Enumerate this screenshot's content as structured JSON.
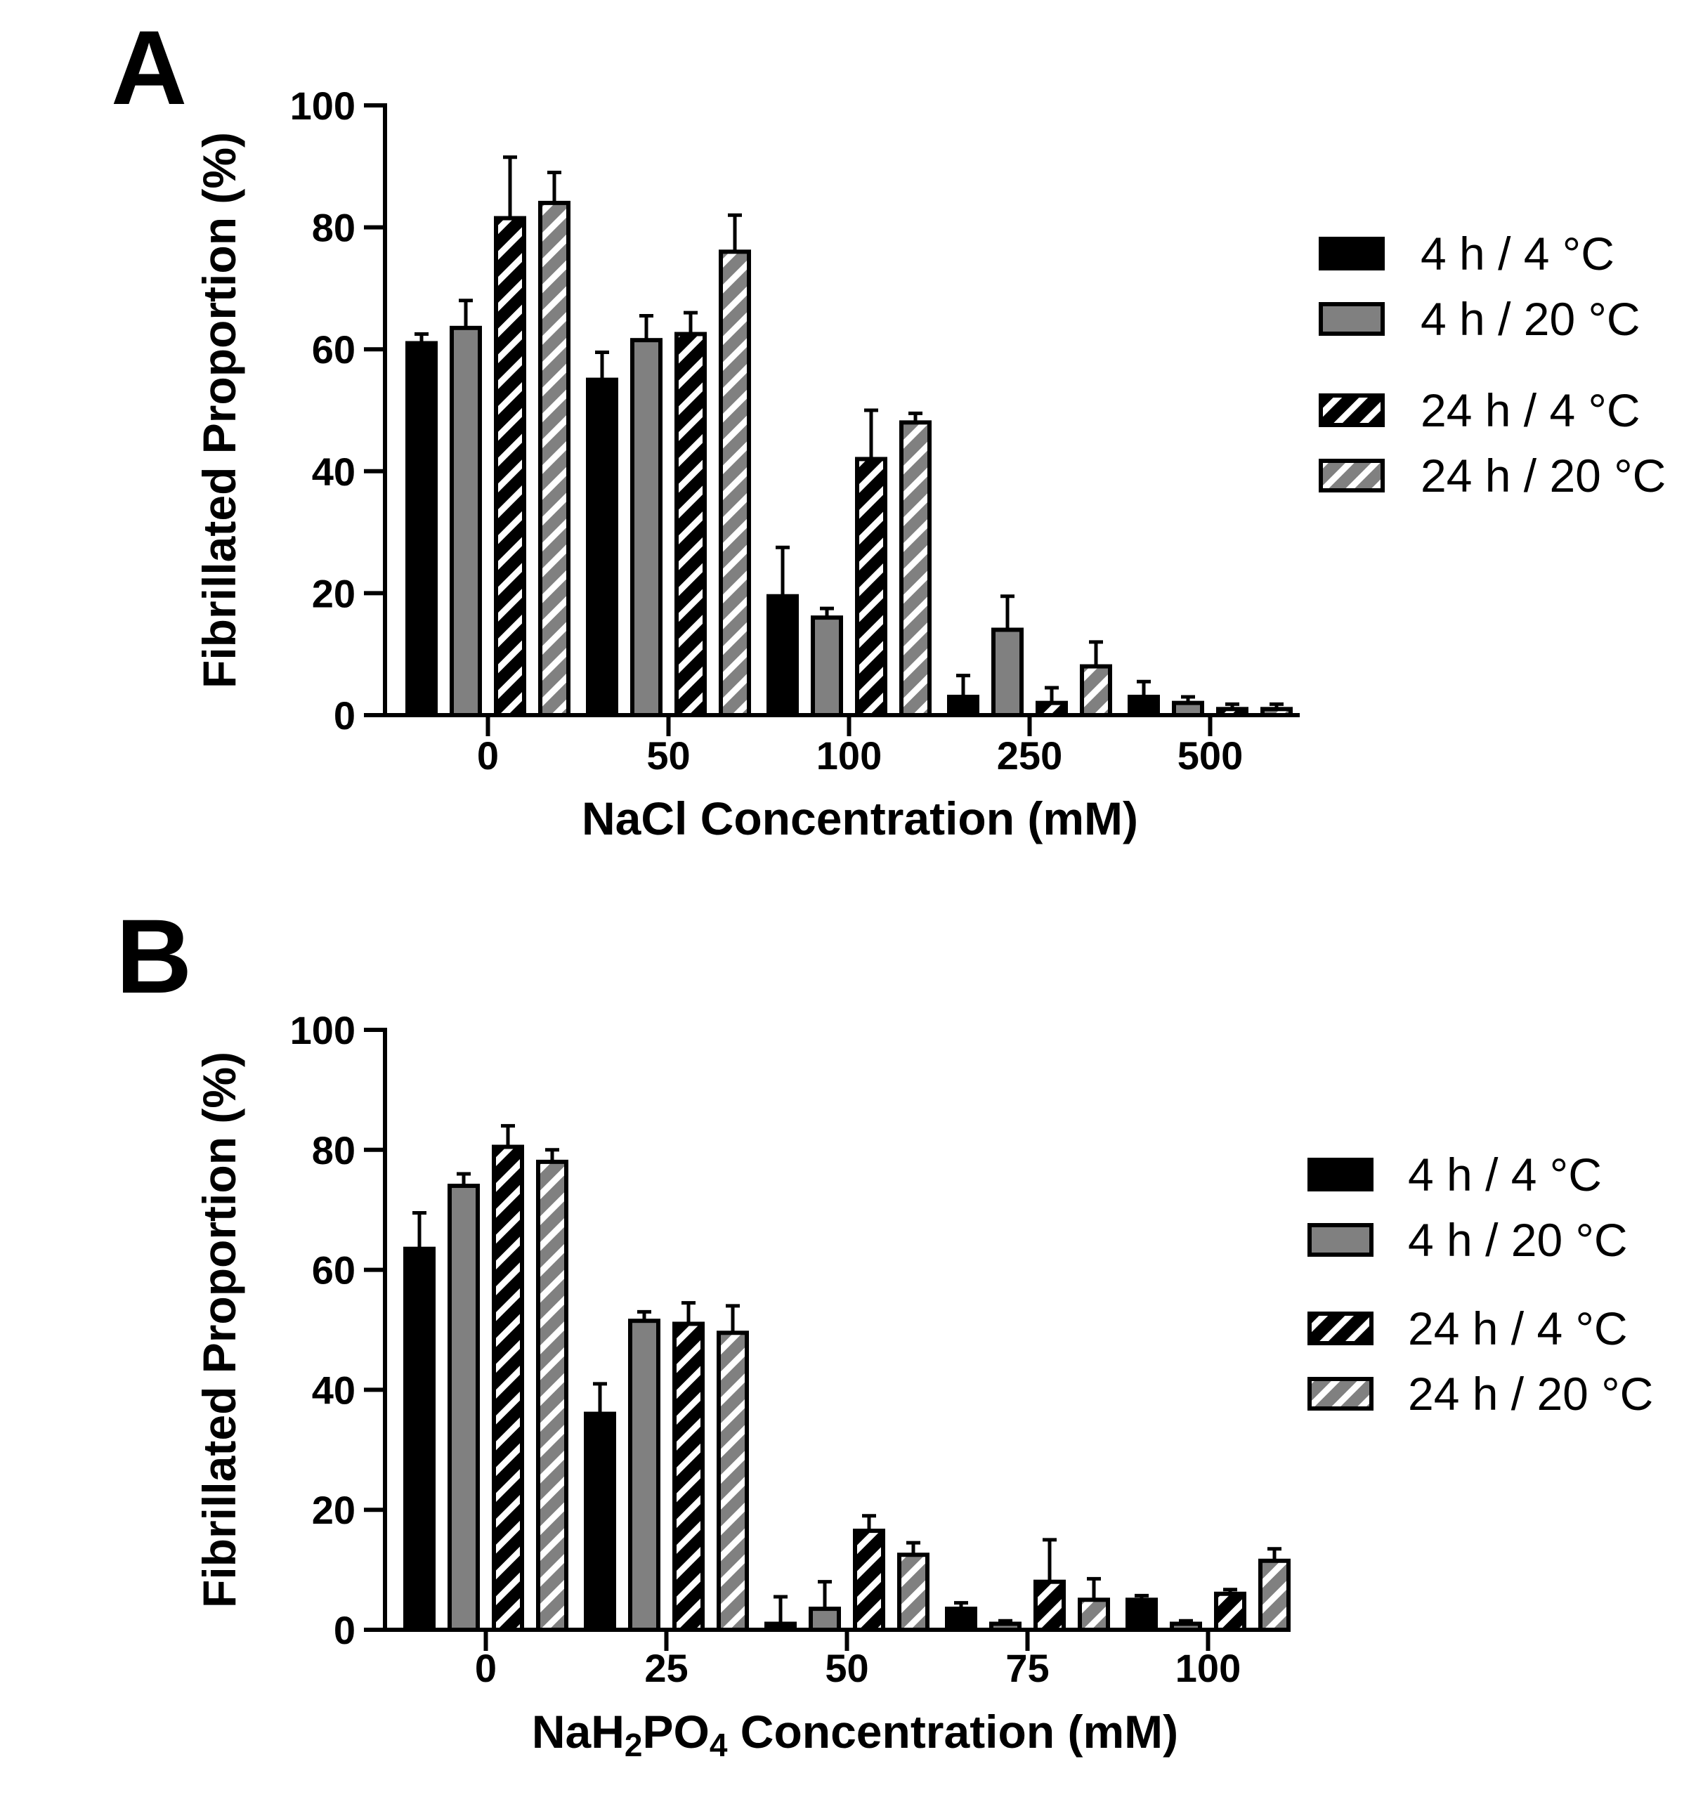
{
  "chart_data": [
    {
      "type": "bar",
      "panel": "A",
      "title": "",
      "xlabel": "NaCl Concentration (mM)",
      "xlabel_sub": [],
      "ylabel": "Fibrillated Proportion (%)",
      "ylim": [
        0,
        100
      ],
      "yticks": [
        0,
        20,
        40,
        60,
        80,
        100
      ],
      "categories": [
        "0",
        "50",
        "100",
        "250",
        "500"
      ],
      "legend_position": "right",
      "series": [
        {
          "name": "4 h / 4 °C",
          "style": "solid-black",
          "values": [
            61,
            55,
            19.5,
            3,
            3
          ],
          "errors": [
            1.5,
            4.5,
            8,
            3.5,
            2.5
          ]
        },
        {
          "name": "4 h / 20 °C",
          "style": "solid-gray",
          "values": [
            63.5,
            61.5,
            16,
            14,
            2
          ],
          "errors": [
            4.5,
            4,
            1.5,
            5.5,
            1
          ]
        },
        {
          "name": "24 h / 4 °C",
          "style": "hatched-black",
          "values": [
            81.5,
            62.5,
            42,
            2,
            1
          ],
          "errors": [
            10,
            3.5,
            8,
            2.5,
            0.8
          ]
        },
        {
          "name": "24 h / 20 °C",
          "style": "hatched-gray",
          "values": [
            84,
            76,
            48,
            8,
            1
          ],
          "errors": [
            5,
            6,
            1.5,
            4,
            0.8
          ]
        }
      ]
    },
    {
      "type": "bar",
      "panel": "B",
      "title": "",
      "xlabel": "",
      "xlabel_parts": [
        "NaH",
        "2",
        "PO",
        "4",
        " Concentration (mM)"
      ],
      "ylabel": "Fibrillated Proportion (%)",
      "ylim": [
        0,
        100
      ],
      "yticks": [
        0,
        20,
        40,
        60,
        80,
        100
      ],
      "categories": [
        "0",
        "25",
        "50",
        "75",
        "100"
      ],
      "legend_position": "right",
      "series": [
        {
          "name": "4 h / 4 °C",
          "style": "solid-black",
          "values": [
            63.5,
            36,
            1,
            3.5,
            5
          ],
          "errors": [
            6,
            5,
            4.5,
            1,
            0.7
          ]
        },
        {
          "name": "4 h / 20 °C",
          "style": "solid-gray",
          "values": [
            74,
            51.5,
            3.5,
            1,
            1
          ],
          "errors": [
            2,
            1.5,
            4.5,
            0.5,
            0.5
          ]
        },
        {
          "name": "24 h / 4 °C",
          "style": "hatched-black",
          "values": [
            80.5,
            51,
            16.5,
            8,
            6
          ],
          "errors": [
            3.5,
            3.5,
            2.5,
            7,
            0.7
          ]
        },
        {
          "name": "24 h / 20 °C",
          "style": "hatched-gray",
          "values": [
            78,
            49.5,
            12.5,
            5,
            11.5
          ],
          "errors": [
            2,
            4.5,
            2,
            3.5,
            2
          ]
        }
      ]
    }
  ]
}
